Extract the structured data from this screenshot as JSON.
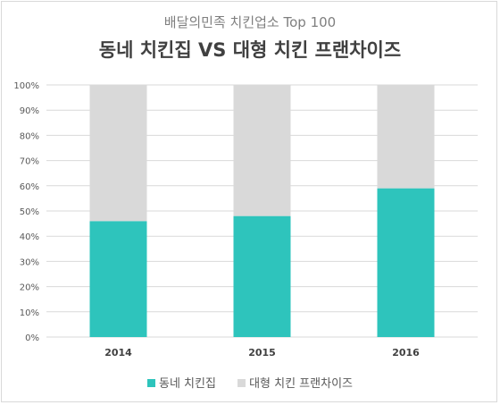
{
  "chart_data": {
    "type": "bar",
    "stacked": true,
    "subtitle": "배달의민족 치킨업소 Top 100",
    "title": "동네 치킨집 VS 대형 치킨 프랜차이즈",
    "categories": [
      "2014",
      "2015",
      "2016"
    ],
    "series": [
      {
        "name": "동네 치킨집",
        "values": [
          46,
          48,
          59
        ],
        "color": "#2ec4bc"
      },
      {
        "name": "대형 치킨 프랜차이즈",
        "values": [
          54,
          52,
          41
        ],
        "color": "#d9d9d9"
      }
    ],
    "ylim": [
      0,
      100
    ],
    "y_ticks": [
      "0%",
      "10%",
      "20%",
      "30%",
      "40%",
      "50%",
      "60%",
      "70%",
      "80%",
      "90%",
      "100%"
    ],
    "grid": true,
    "legend_position": "bottom"
  }
}
